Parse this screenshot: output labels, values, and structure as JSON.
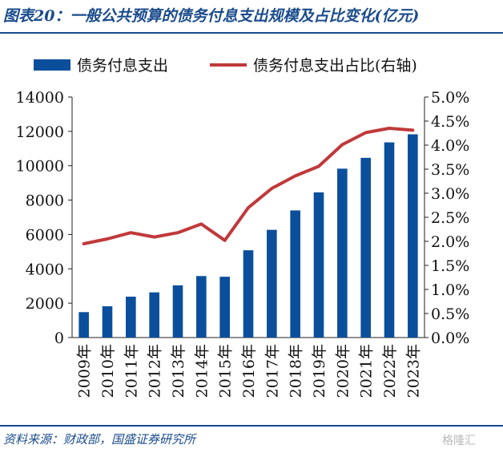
{
  "header": {
    "title": "图表20：一般公共预算的债务付息支出规模及占比变化(亿元)"
  },
  "footer": {
    "source": "资料来源：财政部，国盛证券研究所",
    "watermark": "格隆汇"
  },
  "colors": {
    "bar": "#0b4f9c",
    "line": "#c0393b",
    "heading": "#1a4b8c"
  },
  "chart_data": {
    "type": "bar",
    "categories": [
      "2009年",
      "2010年",
      "2011年",
      "2012年",
      "2013年",
      "2014年",
      "2015年",
      "2016年",
      "2017年",
      "2018年",
      "2019年",
      "2020年",
      "2021年",
      "2022年",
      "2023年"
    ],
    "series": [
      {
        "name": "债务付息支出",
        "type": "bar",
        "axis": "left",
        "values": [
          1480,
          1820,
          2380,
          2630,
          3040,
          3580,
          3540,
          5080,
          6270,
          7400,
          8450,
          9830,
          10460,
          11360,
          11830
        ]
      },
      {
        "name": "债务付息支出占比(右轴)",
        "type": "line",
        "axis": "right",
        "values": [
          1.95,
          2.05,
          2.18,
          2.09,
          2.18,
          2.36,
          2.02,
          2.7,
          3.1,
          3.36,
          3.56,
          4.01,
          4.26,
          4.35,
          4.31
        ]
      }
    ],
    "y_left": {
      "min": 0,
      "max": 14000,
      "ticks": [
        0,
        2000,
        4000,
        6000,
        8000,
        10000,
        12000,
        14000
      ],
      "tick_labels": [
        "0",
        "2000",
        "4000",
        "6000",
        "8000",
        "10000",
        "12000",
        "14000"
      ]
    },
    "y_right": {
      "min": 0,
      "max": 5.0,
      "ticks": [
        0,
        0.5,
        1.0,
        1.5,
        2.0,
        2.5,
        3.0,
        3.5,
        4.0,
        4.5,
        5.0
      ],
      "tick_labels": [
        "0.0%",
        "0.5%",
        "1.0%",
        "1.5%",
        "2.0%",
        "2.5%",
        "3.0%",
        "3.5%",
        "4.0%",
        "4.5%",
        "5.0%"
      ]
    },
    "grid": false,
    "legend_position": "top"
  }
}
